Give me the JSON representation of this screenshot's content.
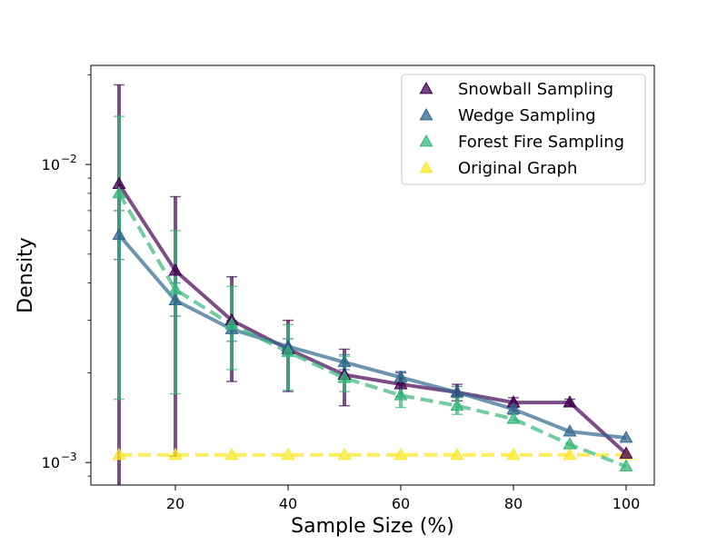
{
  "chart_data": {
    "type": "line",
    "title": "",
    "xlabel": "Sample Size (%)",
    "ylabel": "Density",
    "yscale": "log",
    "xlim": [
      5,
      105
    ],
    "ylim": [
      0.00084,
      0.0215
    ],
    "xticks": [
      20,
      40,
      60,
      80,
      100
    ],
    "xtick_labels": [
      "20",
      "40",
      "60",
      "80",
      "100"
    ],
    "yticks": [
      0.001,
      0.01
    ],
    "ytick_label_base": "10",
    "ytick_label_exponents": [
      "−3",
      "−2"
    ],
    "legend_position": "top-right",
    "x": [
      10,
      20,
      30,
      40,
      50,
      60,
      70,
      80,
      90,
      100
    ],
    "series": [
      {
        "name": "Snowball Sampling",
        "color": "#440154",
        "style": "solid",
        "values": [
          0.0086,
          0.0044,
          0.003,
          0.0024,
          0.00197,
          0.00183,
          0.00172,
          0.00159,
          0.00159,
          0.00107
        ],
        "err_low": [
          0.0007,
          0.00105,
          0.00187,
          0.00173,
          0.00155,
          0.00166,
          0.00161,
          0.00153,
          0.00155,
          null
        ],
        "err_high": [
          0.0185,
          0.0078,
          0.0042,
          0.003,
          0.0024,
          0.002,
          0.00183,
          0.00165,
          0.00163,
          null
        ]
      },
      {
        "name": "Wedge Sampling",
        "color": "#31688e",
        "style": "solid",
        "values": [
          0.0058,
          0.0035,
          0.0028,
          0.00245,
          0.00217,
          0.00193,
          0.00172,
          0.00151,
          0.00127,
          0.00121
        ],
        "err_low": [
          0.0048,
          0.0031,
          0.00255,
          0.0023,
          0.00205,
          0.00184,
          0.00166,
          0.00145,
          null,
          null
        ],
        "err_high": [
          0.007,
          0.004,
          0.003,
          0.0026,
          0.0023,
          0.00202,
          0.0018,
          0.00157,
          null,
          null
        ]
      },
      {
        "name": "Forest Fire Sampling",
        "color": "#35b779",
        "style": "dashed",
        "values": [
          0.008,
          0.0038,
          0.0029,
          0.00235,
          0.00192,
          0.00168,
          0.00155,
          0.0014,
          0.00115,
          0.00097
        ],
        "err_low": [
          0.00163,
          0.0017,
          0.00205,
          0.00175,
          0.00173,
          0.00153,
          0.00145,
          null,
          null,
          null
        ],
        "err_high": [
          0.0145,
          0.006,
          0.0039,
          0.0029,
          0.00227,
          0.00185,
          0.00165,
          null,
          null,
          null
        ]
      },
      {
        "name": "Original Graph",
        "color": "#fde725",
        "style": "dashed",
        "values": [
          0.00106,
          0.00106,
          0.00106,
          0.00106,
          0.00106,
          0.00106,
          0.00106,
          0.00106,
          0.00106,
          0.00106
        ],
        "err_low": [
          null,
          null,
          null,
          null,
          null,
          null,
          null,
          null,
          null,
          null
        ],
        "err_high": [
          null,
          null,
          null,
          null,
          null,
          null,
          null,
          null,
          null,
          null
        ]
      }
    ]
  }
}
